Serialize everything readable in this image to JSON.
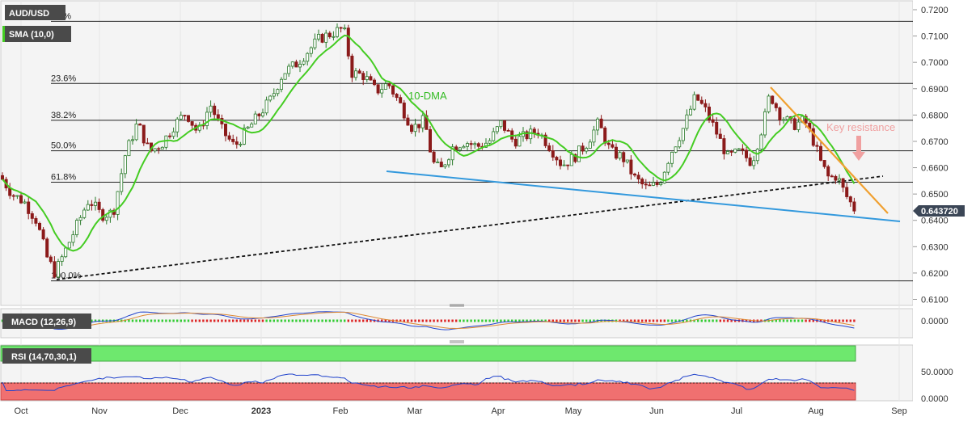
{
  "colors": {
    "candle_up": "#2a7a2a",
    "candle_down": "#8b1a1a",
    "sma": "#44cc22",
    "trendline_blue": "#3399dd",
    "trendline_orange": "#f0a030",
    "support_dashed": "#111111",
    "fib_lines": "#222222",
    "price_tag": "#3b4656",
    "macd_line": "#2244cc",
    "signal_line": "#dd8833",
    "hist_up": "#33cc33",
    "hist_down": "#dd2222",
    "rsi_line": "#2244cc",
    "overbought_band": "#6ee86e",
    "oversold_band": "#f07070",
    "label_bg": "#4a4a4a",
    "annotation_pink": "#f0a0a0"
  },
  "labels": {
    "symbol": "AUD/USD",
    "sma": "SMA (10,0)",
    "macd": "MACD (12,26,9)",
    "rsi": "RSI (14,70,30,1)",
    "dma_annotation": "10-DMA",
    "key_resistance": "Key resistance",
    "current_price": "0.643720"
  },
  "chart_data": {
    "type": "candlestick",
    "symbol": "AUD/USD",
    "x_labels": [
      "Oct",
      "Nov",
      "Dec",
      "2023",
      "Feb",
      "Mar",
      "Apr",
      "May",
      "Jun",
      "Jul",
      "Aug",
      "Sep"
    ],
    "y_ticks": [
      "0.7200",
      "0.7100",
      "0.7000",
      "0.6900",
      "0.6800",
      "0.6700",
      "0.6600",
      "0.6500",
      "0.6400",
      "0.6300",
      "0.6200",
      "0.6100"
    ],
    "ylim": [
      0.61,
      0.72
    ],
    "fibonacci": [
      {
        "label": "0.0%",
        "level": 0.7156
      },
      {
        "label": "23.6%",
        "level": 0.692
      },
      {
        "label": "38.2%",
        "level": 0.678
      },
      {
        "label": "50.0%",
        "level": 0.6664
      },
      {
        "label": "61.8%",
        "level": 0.6545
      },
      {
        "label": "100.0%",
        "level": 0.617
      }
    ],
    "current_price": 0.64372,
    "macd_ticks": [
      "0.0000"
    ],
    "rsi_ticks": [
      "50.0000",
      "0.0000"
    ]
  }
}
